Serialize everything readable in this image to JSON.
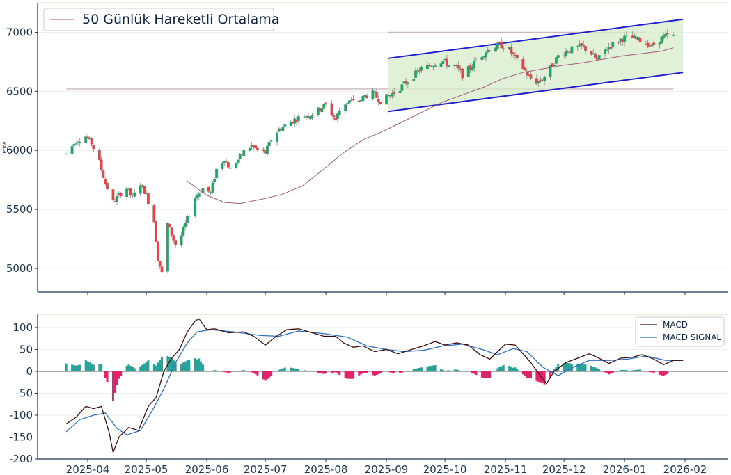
{
  "chart_data": [
    {
      "type": "candlestick",
      "ylabel": "Price",
      "ylim": [
        4800,
        7250
      ],
      "yticks": [
        5000,
        5500,
        6000,
        6500,
        7000
      ],
      "legend": {
        "position": "top-left",
        "entries": [
          "50 Günlük Hareketli Ortalama"
        ]
      },
      "colors": {
        "up": "#26a269",
        "down": "#e0474c",
        "ma": "#a05a78",
        "channel_line": "#1f1fd0",
        "channel_fill": "#d7ecc9",
        "level_line": "#c9b7bb",
        "axis": "#1a3552"
      },
      "horizontal_levels": [
        {
          "value": 7000,
          "from": "2025-09-02",
          "to": "2026-01-12"
        },
        {
          "value": 6520,
          "from": "2025-03-21",
          "to": "2026-01-26"
        }
      ],
      "channel": {
        "upper": [
          {
            "x": "2025-09-02",
            "y": 6780
          },
          {
            "x": "2026-01-31",
            "y": 7110
          }
        ],
        "lower": [
          {
            "x": "2025-09-02",
            "y": 6330
          },
          {
            "x": "2026-01-31",
            "y": 6660
          }
        ]
      },
      "price_path": [
        [
          "2025-03-21",
          5970
        ],
        [
          "2025-03-26",
          6080
        ],
        [
          "2025-03-31",
          6120
        ],
        [
          "2025-04-03",
          6060
        ],
        [
          "2025-04-07",
          5900
        ],
        [
          "2025-04-10",
          5720
        ],
        [
          "2025-04-14",
          5560
        ],
        [
          "2025-04-17",
          5620
        ],
        [
          "2025-04-21",
          5680
        ],
        [
          "2025-04-24",
          5600
        ],
        [
          "2025-04-28",
          5720
        ],
        [
          "2025-05-01",
          5620
        ],
        [
          "2025-05-05",
          5400
        ],
        [
          "2025-05-07",
          5080
        ],
        [
          "2025-05-09",
          4960
        ],
        [
          "2025-05-12",
          5380
        ],
        [
          "2025-05-16",
          5200
        ],
        [
          "2025-05-19",
          5280
        ],
        [
          "2025-05-22",
          5420
        ],
        [
          "2025-05-26",
          5600
        ],
        [
          "2025-05-30",
          5680
        ],
        [
          "2025-06-03",
          5640
        ],
        [
          "2025-06-06",
          5840
        ],
        [
          "2025-06-10",
          5930
        ],
        [
          "2025-06-13",
          5840
        ],
        [
          "2025-06-17",
          5920
        ],
        [
          "2025-06-20",
          5990
        ],
        [
          "2025-06-24",
          6040
        ],
        [
          "2025-06-27",
          6000
        ],
        [
          "2025-07-01",
          5980
        ],
        [
          "2025-07-04",
          6090
        ],
        [
          "2025-07-08",
          6180
        ],
        [
          "2025-07-12",
          6220
        ],
        [
          "2025-07-16",
          6260
        ],
        [
          "2025-07-20",
          6290
        ],
        [
          "2025-07-24",
          6300
        ],
        [
          "2025-07-28",
          6340
        ],
        [
          "2025-08-01",
          6390
        ],
        [
          "2025-08-04",
          6310
        ],
        [
          "2025-08-06",
          6260
        ],
        [
          "2025-08-09",
          6380
        ],
        [
          "2025-08-13",
          6420
        ],
        [
          "2025-08-17",
          6400
        ],
        [
          "2025-08-21",
          6460
        ],
        [
          "2025-08-25",
          6480
        ],
        [
          "2025-08-29",
          6420
        ],
        [
          "2025-09-02",
          6460
        ],
        [
          "2025-09-06",
          6500
        ],
        [
          "2025-09-10",
          6560
        ],
        [
          "2025-09-14",
          6620
        ],
        [
          "2025-09-18",
          6680
        ],
        [
          "2025-09-22",
          6710
        ],
        [
          "2025-09-26",
          6740
        ],
        [
          "2025-09-30",
          6760
        ],
        [
          "2025-10-03",
          6720
        ],
        [
          "2025-10-07",
          6700
        ],
        [
          "2025-10-10",
          6640
        ],
        [
          "2025-10-14",
          6700
        ],
        [
          "2025-10-18",
          6780
        ],
        [
          "2025-10-22",
          6840
        ],
        [
          "2025-10-26",
          6880
        ],
        [
          "2025-10-30",
          6890
        ],
        [
          "2025-11-03",
          6850
        ],
        [
          "2025-11-06",
          6780
        ],
        [
          "2025-11-10",
          6700
        ],
        [
          "2025-11-13",
          6620
        ],
        [
          "2025-11-17",
          6580
        ],
        [
          "2025-11-20",
          6600
        ],
        [
          "2025-11-24",
          6700
        ],
        [
          "2025-11-28",
          6800
        ],
        [
          "2025-12-02",
          6840
        ],
        [
          "2025-12-06",
          6860
        ],
        [
          "2025-12-10",
          6880
        ],
        [
          "2025-12-14",
          6840
        ],
        [
          "2025-12-18",
          6760
        ],
        [
          "2025-12-22",
          6850
        ],
        [
          "2025-12-26",
          6900
        ],
        [
          "2025-12-30",
          6940
        ],
        [
          "2026-01-03",
          6960
        ],
        [
          "2026-01-07",
          6940
        ],
        [
          "2026-01-11",
          6920
        ],
        [
          "2026-01-15",
          6880
        ],
        [
          "2026-01-19",
          6940
        ],
        [
          "2026-01-23",
          6970
        ],
        [
          "2026-01-26",
          6960
        ]
      ],
      "moving_average": [
        [
          "2025-05-22",
          5740
        ],
        [
          "2025-06-01",
          5620
        ],
        [
          "2025-06-10",
          5560
        ],
        [
          "2025-06-18",
          5550
        ],
        [
          "2025-06-30",
          5590
        ],
        [
          "2025-07-10",
          5630
        ],
        [
          "2025-07-20",
          5700
        ],
        [
          "2025-07-30",
          5830
        ],
        [
          "2025-08-10",
          5980
        ],
        [
          "2025-08-20",
          6090
        ],
        [
          "2025-08-30",
          6160
        ],
        [
          "2025-09-09",
          6240
        ],
        [
          "2025-09-20",
          6330
        ],
        [
          "2025-09-30",
          6410
        ],
        [
          "2025-10-10",
          6470
        ],
        [
          "2025-10-20",
          6530
        ],
        [
          "2025-10-31",
          6610
        ],
        [
          "2025-11-10",
          6660
        ],
        [
          "2025-11-20",
          6690
        ],
        [
          "2025-11-30",
          6720
        ],
        [
          "2025-12-10",
          6740
        ],
        [
          "2025-12-20",
          6770
        ],
        [
          "2025-12-31",
          6800
        ],
        [
          "2026-01-10",
          6820
        ],
        [
          "2026-01-20",
          6840
        ],
        [
          "2026-01-26",
          6870
        ]
      ]
    },
    {
      "type": "macd",
      "ylim": [
        -200,
        130
      ],
      "yticks": [
        -200,
        -150,
        -100,
        -50,
        0,
        50,
        100
      ],
      "xticks": [
        "2025-04",
        "2025-05",
        "2025-06",
        "2025-07",
        "2025-08",
        "2025-09",
        "2025-10",
        "2025-11",
        "2025-12",
        "2026-01",
        "2026-02"
      ],
      "legend": {
        "position": "top-right",
        "entries": [
          "MACD",
          "MACD SIGNAL"
        ]
      },
      "colors": {
        "macd": "#3b0c0c",
        "signal": "#2e6fc4",
        "hist_pos": "#2aa198",
        "hist_neg": "#e0226a"
      },
      "macd": [
        [
          "2025-03-21",
          -120
        ],
        [
          "2025-03-26",
          -105
        ],
        [
          "2025-03-31",
          -80
        ],
        [
          "2025-04-04",
          -85
        ],
        [
          "2025-04-08",
          -80
        ],
        [
          "2025-04-12",
          -140
        ],
        [
          "2025-04-14",
          -185
        ],
        [
          "2025-04-17",
          -150
        ],
        [
          "2025-04-22",
          -128
        ],
        [
          "2025-04-27",
          -135
        ],
        [
          "2025-05-02",
          -80
        ],
        [
          "2025-05-06",
          -60
        ],
        [
          "2025-05-10",
          0
        ],
        [
          "2025-05-14",
          30
        ],
        [
          "2025-05-18",
          50
        ],
        [
          "2025-05-22",
          90
        ],
        [
          "2025-05-26",
          115
        ],
        [
          "2025-05-28",
          120
        ],
        [
          "2025-06-01",
          95
        ],
        [
          "2025-06-05",
          97
        ],
        [
          "2025-06-12",
          88
        ],
        [
          "2025-06-20",
          90
        ],
        [
          "2025-06-25",
          80
        ],
        [
          "2025-07-01",
          60
        ],
        [
          "2025-07-06",
          78
        ],
        [
          "2025-07-12",
          95
        ],
        [
          "2025-07-18",
          97
        ],
        [
          "2025-07-25",
          88
        ],
        [
          "2025-07-31",
          80
        ],
        [
          "2025-08-06",
          80
        ],
        [
          "2025-08-10",
          65
        ],
        [
          "2025-08-15",
          55
        ],
        [
          "2025-08-20",
          58
        ],
        [
          "2025-08-26",
          45
        ],
        [
          "2025-09-01",
          50
        ],
        [
          "2025-09-07",
          40
        ],
        [
          "2025-09-14",
          50
        ],
        [
          "2025-09-20",
          58
        ],
        [
          "2025-09-26",
          68
        ],
        [
          "2025-10-01",
          60
        ],
        [
          "2025-10-07",
          65
        ],
        [
          "2025-10-13",
          60
        ],
        [
          "2025-10-19",
          38
        ],
        [
          "2025-10-24",
          28
        ],
        [
          "2025-10-28",
          45
        ],
        [
          "2025-11-01",
          62
        ],
        [
          "2025-11-06",
          60
        ],
        [
          "2025-11-10",
          40
        ],
        [
          "2025-11-14",
          20
        ],
        [
          "2025-11-18",
          -5
        ],
        [
          "2025-11-22",
          -28
        ],
        [
          "2025-11-26",
          0
        ],
        [
          "2025-12-02",
          20
        ],
        [
          "2025-12-08",
          30
        ],
        [
          "2025-12-14",
          40
        ],
        [
          "2025-12-19",
          30
        ],
        [
          "2025-12-24",
          18
        ],
        [
          "2025-12-30",
          30
        ],
        [
          "2026-01-05",
          32
        ],
        [
          "2026-01-10",
          38
        ],
        [
          "2026-01-16",
          28
        ],
        [
          "2026-01-21",
          15
        ],
        [
          "2026-01-26",
          25
        ],
        [
          "2026-01-31",
          25
        ]
      ],
      "signal": [
        [
          "2025-03-21",
          -138
        ],
        [
          "2025-03-28",
          -110
        ],
        [
          "2025-04-04",
          -100
        ],
        [
          "2025-04-10",
          -95
        ],
        [
          "2025-04-16",
          -130
        ],
        [
          "2025-04-21",
          -145
        ],
        [
          "2025-04-28",
          -135
        ],
        [
          "2025-05-04",
          -90
        ],
        [
          "2025-05-10",
          -40
        ],
        [
          "2025-05-16",
          20
        ],
        [
          "2025-05-22",
          65
        ],
        [
          "2025-05-27",
          90
        ],
        [
          "2025-06-03",
          95
        ],
        [
          "2025-06-15",
          90
        ],
        [
          "2025-06-28",
          82
        ],
        [
          "2025-07-08",
          80
        ],
        [
          "2025-07-18",
          92
        ],
        [
          "2025-07-31",
          86
        ],
        [
          "2025-08-12",
          78
        ],
        [
          "2025-08-22",
          58
        ],
        [
          "2025-09-01",
          50
        ],
        [
          "2025-09-10",
          45
        ],
        [
          "2025-09-20",
          48
        ],
        [
          "2025-09-30",
          58
        ],
        [
          "2025-10-10",
          62
        ],
        [
          "2025-10-20",
          50
        ],
        [
          "2025-10-28",
          38
        ],
        [
          "2025-11-05",
          52
        ],
        [
          "2025-11-12",
          45
        ],
        [
          "2025-11-20",
          10
        ],
        [
          "2025-11-28",
          -10
        ],
        [
          "2025-12-06",
          10
        ],
        [
          "2025-12-14",
          25
        ],
        [
          "2025-12-24",
          25
        ],
        [
          "2026-01-03",
          28
        ],
        [
          "2026-01-12",
          35
        ],
        [
          "2026-01-22",
          25
        ],
        [
          "2026-01-31",
          25
        ]
      ]
    }
  ]
}
